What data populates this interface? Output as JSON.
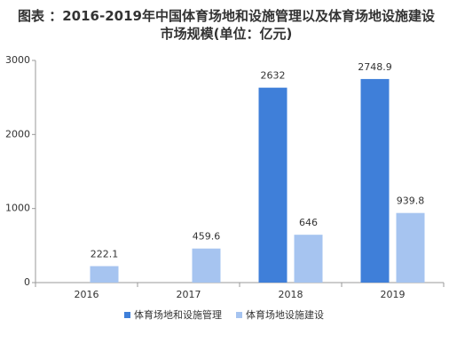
{
  "chart_data": {
    "type": "bar",
    "title": "图表 ：2016-2019年中国体育场地和设施管理以及体育场地设施建设市场规模(单位：亿元)",
    "categories": [
      "2016",
      "2017",
      "2018",
      "2019"
    ],
    "series": [
      {
        "name": "体育场地和设施管理",
        "color": "#3f7fd9",
        "values": [
          null,
          null,
          2632,
          2748.9
        ]
      },
      {
        "name": "体育场地设施建设",
        "color": "#a6c4f0",
        "values": [
          222.1,
          459.6,
          646,
          939.8
        ]
      }
    ],
    "ylim": [
      0,
      3000
    ],
    "yticks": [
      0,
      1000,
      2000,
      3000
    ],
    "grid": false,
    "legend": "bottom"
  }
}
